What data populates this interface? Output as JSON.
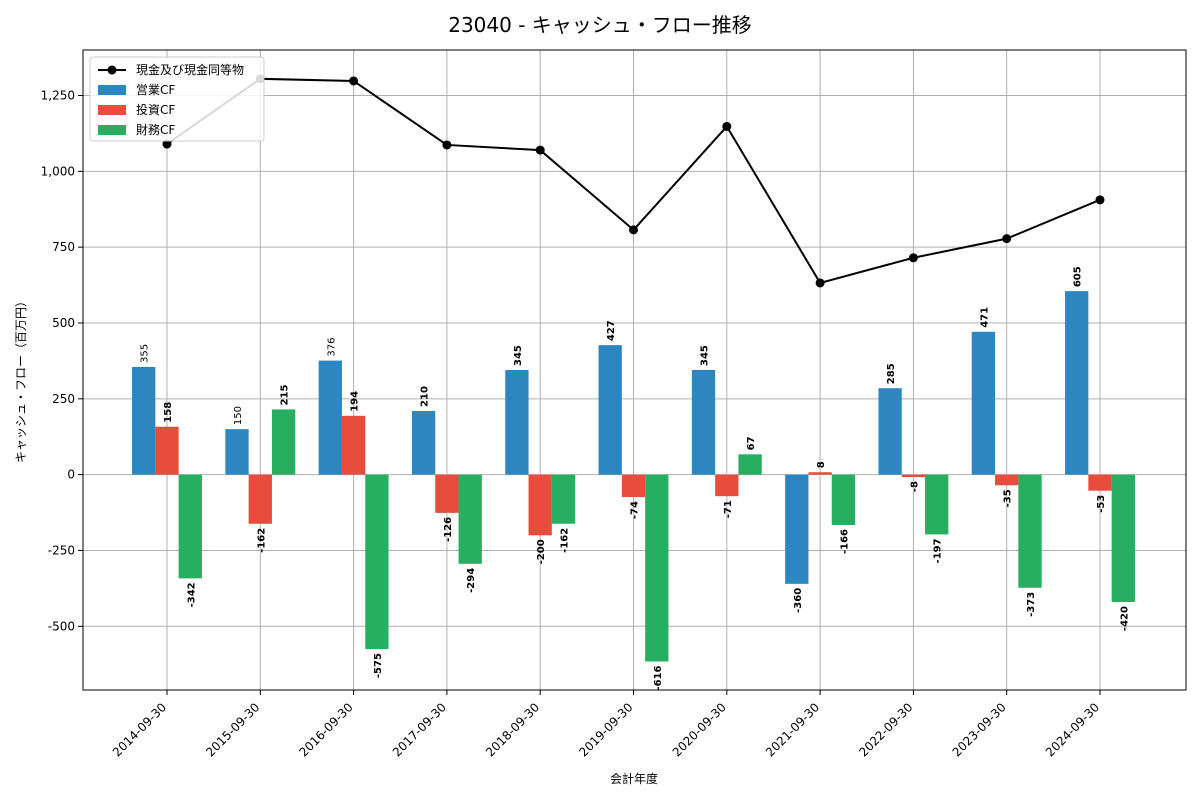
{
  "chart_data": {
    "type": "bar",
    "title": "23040 - キャッシュ・フロー推移",
    "xlabel": "会計年度",
    "ylabel": "キャッシュ・フロー（百万円）",
    "ylim": [
      -710,
      1400
    ],
    "yticks": [
      -500,
      -250,
      0,
      250,
      500,
      750,
      1000,
      1250
    ],
    "ytick_labels": [
      "-500",
      "-250",
      "0",
      "250",
      "500",
      "750",
      "1,000",
      "1,250"
    ],
    "grid": true,
    "legend_position": "top-left",
    "categories": [
      "2014-09-30",
      "2015-09-30",
      "2016-09-30",
      "2017-09-30",
      "2018-09-30",
      "2019-09-30",
      "2020-09-30",
      "2021-09-30",
      "2022-09-30",
      "2023-09-30",
      "2024-09-30"
    ],
    "series": [
      {
        "name": "営業CF",
        "type": "bar",
        "color": "#2e86c1",
        "values": [
          355,
          150,
          376,
          210,
          345,
          427,
          345,
          -360,
          285,
          471,
          605
        ]
      },
      {
        "name": "投資CF",
        "type": "bar",
        "color": "#e74c3c",
        "values": [
          158,
          -162,
          194,
          -126,
          -200,
          -74,
          -71,
          8,
          -8,
          -35,
          -53
        ]
      },
      {
        "name": "財務CF",
        "type": "bar",
        "color": "#27ae60",
        "values": [
          -342,
          215,
          -575,
          -294,
          -162,
          -616,
          67,
          -166,
          -197,
          -373,
          -420
        ]
      }
    ],
    "line_series": {
      "name": "現金及び現金同等物",
      "type": "line",
      "color": "#000000",
      "values": [
        1090,
        1305,
        1298,
        1087,
        1070,
        807,
        1148,
        632,
        715,
        778,
        906
      ]
    }
  }
}
